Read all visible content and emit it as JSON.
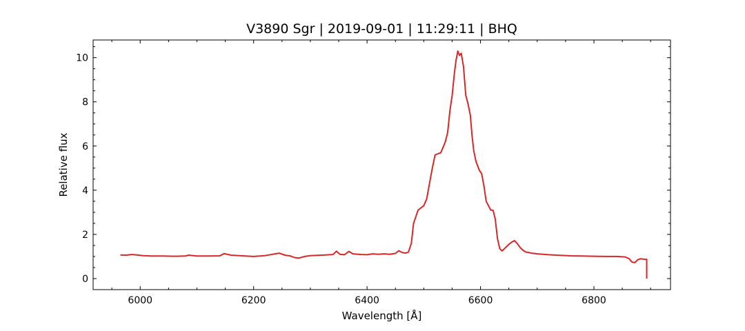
{
  "chart_data": {
    "type": "line",
    "title": "V3890 Sgr | 2019-09-01 | 11:29:11 | BHQ",
    "xlabel": "Wavelength [Å]",
    "ylabel": "Relative flux",
    "xlim": [
      5917,
      6935
    ],
    "ylim": [
      -0.5,
      10.8
    ],
    "x_ticks": [
      6000,
      6200,
      6400,
      6600,
      6800
    ],
    "y_ticks": [
      0,
      2,
      4,
      6,
      8,
      10
    ],
    "grid": false,
    "legend": "none",
    "line_color": "#d62728",
    "series": [
      {
        "x": [
          5965,
          5975,
          5985,
          5995,
          6005,
          6020,
          6040,
          6060,
          6080,
          6085,
          6100,
          6120,
          6140,
          6148,
          6160,
          6180,
          6200,
          6220,
          6238,
          6245,
          6255,
          6265,
          6272,
          6280,
          6290,
          6300,
          6320,
          6340,
          6346,
          6352,
          6360,
          6368,
          6375,
          6390,
          6400,
          6410,
          6420,
          6430,
          6440,
          6450,
          6456,
          6462,
          6468,
          6473,
          6478,
          6482,
          6486,
          6490,
          6495,
          6500,
          6505,
          6510,
          6515,
          6520,
          6525,
          6530,
          6535,
          6538,
          6542,
          6546,
          6550,
          6554,
          6557,
          6560,
          6563,
          6566,
          6570,
          6574,
          6578,
          6582,
          6585,
          6588,
          6592,
          6595,
          6598,
          6602,
          6606,
          6610,
          6614,
          6618,
          6622,
          6626,
          6630,
          6634,
          6638,
          6642,
          6646,
          6650,
          6655,
          6660,
          6665,
          6670,
          6675,
          6680,
          6685,
          6690,
          6700,
          6710,
          6720,
          6740,
          6760,
          6780,
          6800,
          6820,
          6840,
          6855,
          6862,
          6867,
          6872,
          6877,
          6882,
          6887,
          6893,
          6893
        ],
        "y": [
          1.07,
          1.06,
          1.09,
          1.07,
          1.04,
          1.02,
          1.02,
          1.01,
          1.02,
          1.06,
          1.02,
          1.02,
          1.03,
          1.13,
          1.06,
          1.03,
          1.0,
          1.04,
          1.12,
          1.15,
          1.06,
          1.02,
          0.95,
          0.93,
          1.0,
          1.04,
          1.06,
          1.09,
          1.24,
          1.1,
          1.08,
          1.23,
          1.12,
          1.09,
          1.08,
          1.12,
          1.1,
          1.12,
          1.1,
          1.14,
          1.26,
          1.18,
          1.15,
          1.2,
          1.6,
          2.5,
          2.8,
          3.1,
          3.2,
          3.3,
          3.6,
          4.3,
          5.0,
          5.6,
          5.65,
          5.7,
          6.0,
          6.2,
          6.6,
          7.6,
          8.3,
          9.3,
          9.9,
          10.3,
          10.1,
          10.2,
          9.6,
          8.3,
          7.9,
          7.4,
          6.5,
          5.8,
          5.3,
          5.1,
          4.9,
          4.75,
          4.2,
          3.5,
          3.3,
          3.1,
          3.1,
          2.7,
          1.8,
          1.35,
          1.25,
          1.35,
          1.45,
          1.55,
          1.65,
          1.72,
          1.58,
          1.4,
          1.28,
          1.2,
          1.18,
          1.15,
          1.12,
          1.1,
          1.08,
          1.05,
          1.03,
          1.02,
          1.01,
          1.0,
          1.0,
          0.98,
          0.9,
          0.75,
          0.72,
          0.85,
          0.9,
          0.88,
          0.87,
          0.0
        ]
      }
    ]
  }
}
